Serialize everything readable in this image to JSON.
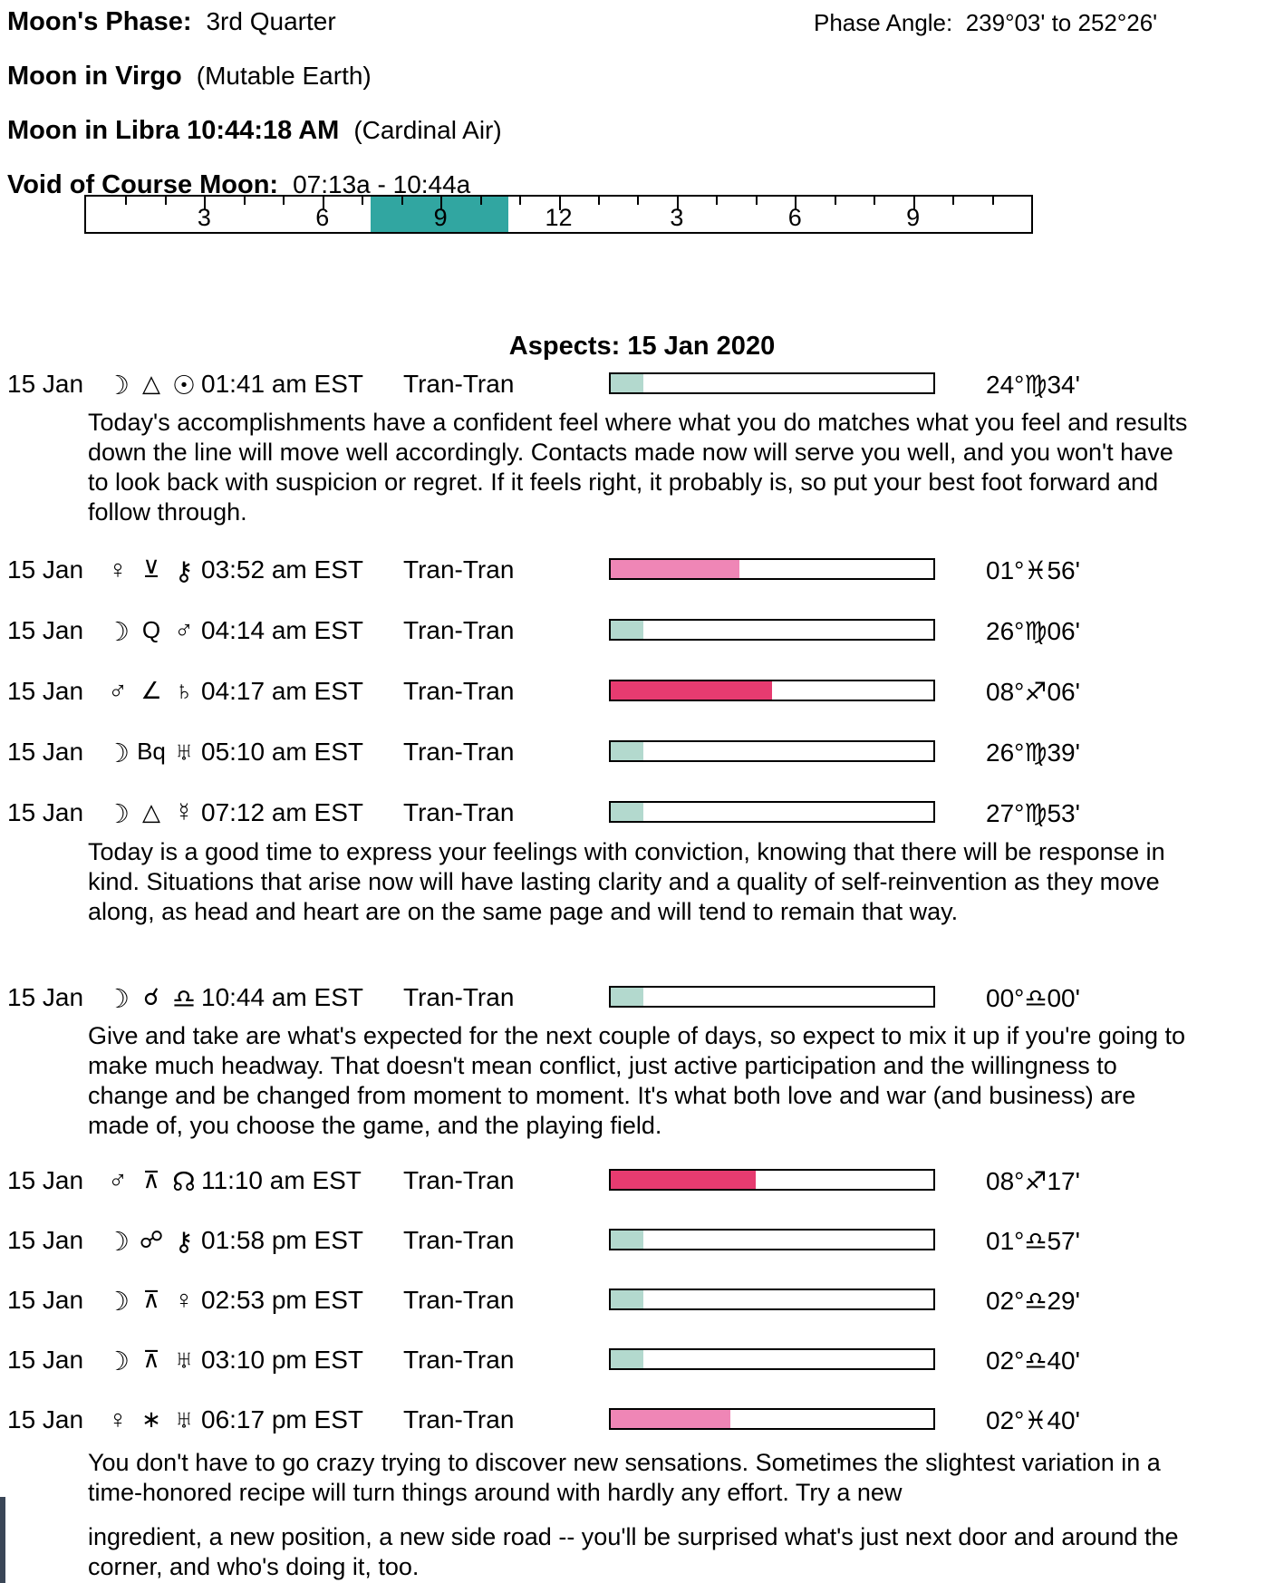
{
  "header": {
    "moons_phase_label": "Moon's Phase:",
    "moons_phase_value": "3rd Quarter",
    "phase_angle_label": "Phase Angle:",
    "phase_angle_value": "239°03' to 252°26'",
    "moon_sign_label": "Moon in Virgo",
    "moon_sign_detail": "(Mutable Earth)",
    "moon_ingress_label": "Moon in Libra 10:44:18 AM",
    "moon_ingress_detail": "(Cardinal Air)",
    "void_label": "Void of Course Moon:",
    "void_value": "07:13a -  10:44a"
  },
  "ruler": {
    "total_hours": 24,
    "major_tick_every": 3,
    "labels": [
      {
        "text": "3",
        "hour": 3
      },
      {
        "text": "6",
        "hour": 6
      },
      {
        "text": "9",
        "hour": 9
      },
      {
        "text": "12",
        "hour": 12
      },
      {
        "text": "3",
        "hour": 15
      },
      {
        "text": "6",
        "hour": 18
      },
      {
        "text": "9",
        "hour": 21
      }
    ],
    "highlight": {
      "start_hour": 7.2167,
      "end_hour": 10.7333,
      "color": "#31A6A1"
    }
  },
  "aspects": {
    "title": "Aspects: 15 Jan 2020",
    "rows": [
      {
        "date": "15 Jan",
        "p1": "☽",
        "asp": "△",
        "p2": "☉",
        "time": "01:41 am EST",
        "type": "Tran-Tran",
        "bar": {
          "pct": 10,
          "color": "#B3D9CE"
        },
        "degree": "24°♍34'",
        "description": "Today's accomplishments have a confident feel where what you do matches what you feel and results down the line will move well accordingly. Contacts made now will serve you well, and you won't have to look back with suspicion or regret. If it feels right, it probably is, so put your best foot forward and follow through."
      },
      {
        "date": "15 Jan",
        "p1": "♀",
        "asp": "⊻",
        "p2": "⚷",
        "time": "03:52 am EST",
        "type": "Tran-Tran",
        "bar": {
          "pct": 40,
          "color": "#EF86B6"
        },
        "degree": "01°♓56'"
      },
      {
        "date": "15 Jan",
        "p1": "☽",
        "asp": "Q",
        "p2": "♂",
        "time": "04:14 am EST",
        "type": "Tran-Tran",
        "bar": {
          "pct": 10,
          "color": "#B3D9CE"
        },
        "degree": "26°♍06'"
      },
      {
        "date": "15 Jan",
        "p1": "♂",
        "asp": "∠",
        "p2": "♄",
        "time": "04:17 am EST",
        "type": "Tran-Tran",
        "bar": {
          "pct": 50,
          "color": "#E73B70"
        },
        "degree": "08°♐06'"
      },
      {
        "date": "15 Jan",
        "p1": "☽",
        "asp": "Bq",
        "p2": "♅",
        "time": "05:10 am EST",
        "type": "Tran-Tran",
        "bar": {
          "pct": 10,
          "color": "#B3D9CE"
        },
        "degree": "26°♍39'"
      },
      {
        "date": "15 Jan",
        "p1": "☽",
        "asp": "△",
        "p2": "☿",
        "time": "07:12 am EST",
        "type": "Tran-Tran",
        "bar": {
          "pct": 10,
          "color": "#B3D9CE"
        },
        "degree": "27°♍53'",
        "description": "Today is a good time to express your feelings with conviction, knowing that there will be response in kind. Situations that arise now will have lasting clarity and a quality of self-reinvention as they move along, as head and heart are on the same page and will tend to remain that way."
      },
      {
        "date": "15 Jan",
        "p1": "☽",
        "asp": "☌",
        "p2": "♎",
        "time": "10:44 am EST",
        "type": "Tran-Tran",
        "bar": {
          "pct": 10,
          "color": "#B3D9CE"
        },
        "degree": "00°♎00'",
        "description": "Give and take are what's expected for the next couple of days, so expect to mix it up if you're going to make much headway. That doesn't mean conflict, just active participation and the willingness to change and be changed from moment to moment. It's what both love and war (and business) are made of, you choose the game, and the playing field."
      },
      {
        "date": "15 Jan",
        "p1": "♂",
        "asp": "⊼",
        "p2": "☊",
        "time": "11:10 am EST",
        "type": "Tran-Tran",
        "bar": {
          "pct": 45,
          "color": "#E73B70"
        },
        "degree": "08°♐17'"
      },
      {
        "date": "15 Jan",
        "p1": "☽",
        "asp": "☍",
        "p2": "⚷",
        "time": "01:58 pm EST",
        "type": "Tran-Tran",
        "bar": {
          "pct": 10,
          "color": "#B3D9CE"
        },
        "degree": "01°♎57'"
      },
      {
        "date": "15 Jan",
        "p1": "☽",
        "asp": "⊼",
        "p2": "♀",
        "time": "02:53 pm EST",
        "type": "Tran-Tran",
        "bar": {
          "pct": 10,
          "color": "#B3D9CE"
        },
        "degree": "02°♎29'"
      },
      {
        "date": "15 Jan",
        "p1": "☽",
        "asp": "⊼",
        "p2": "♅",
        "time": "03:10 pm EST",
        "type": "Tran-Tran",
        "bar": {
          "pct": 10,
          "color": "#B3D9CE"
        },
        "degree": "02°♎40'"
      },
      {
        "date": "15 Jan",
        "p1": "♀",
        "asp": "∗",
        "p2": "♅",
        "time": "06:17 pm EST",
        "type": "Tran-Tran",
        "bar": {
          "pct": 37,
          "color": "#EF86B6"
        },
        "degree": "02°♓40'",
        "description": "You don't have to go crazy trying to discover new sensations. Sometimes the slightest variation in a time-honored recipe will turn things around with hardly any effort. Try a new",
        "description_2": "ingredient, a new position, a new side road -- you'll be surprised what's just next door and around the corner, and who's doing it, too."
      }
    ]
  },
  "artifacts": {
    "edge_strip_color": "#3A4657"
  }
}
